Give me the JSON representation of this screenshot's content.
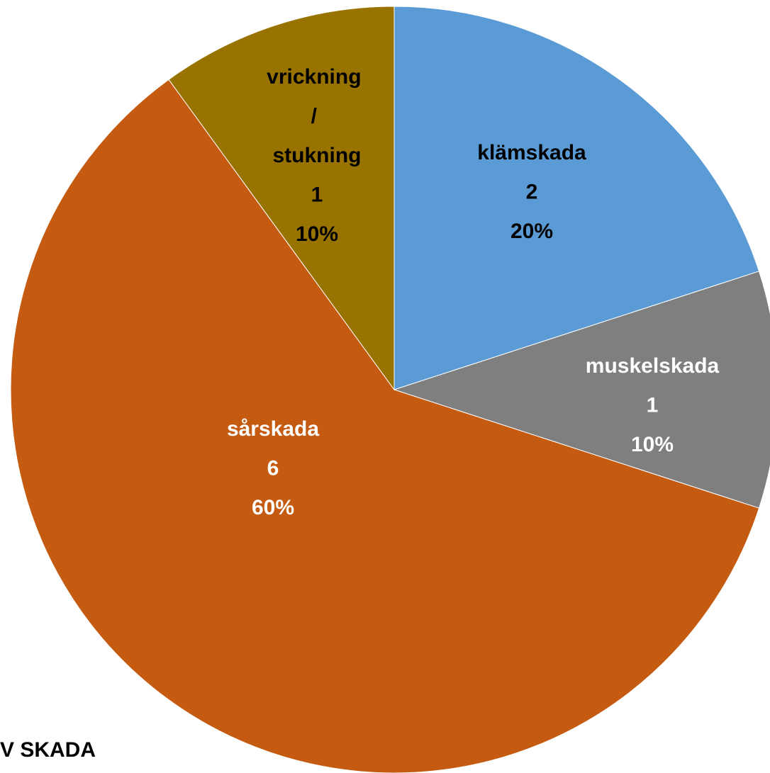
{
  "chart_data": {
    "type": "pie",
    "title": "V SKADA",
    "categories": [
      "klämskada",
      "muskelskada",
      "sårskada",
      "vrickning / stukning"
    ],
    "values": [
      2,
      1,
      6,
      1
    ],
    "percentages": [
      20,
      10,
      60,
      10
    ],
    "percentage_labels": [
      "20%",
      "10%",
      "60%",
      "10%"
    ],
    "colors": [
      "#5b9bd5",
      "#7f7f7f",
      "#c55a11",
      "#997300"
    ],
    "label_colors": [
      "#000000",
      "#ffffff",
      "#ffffff",
      "#000000"
    ]
  }
}
